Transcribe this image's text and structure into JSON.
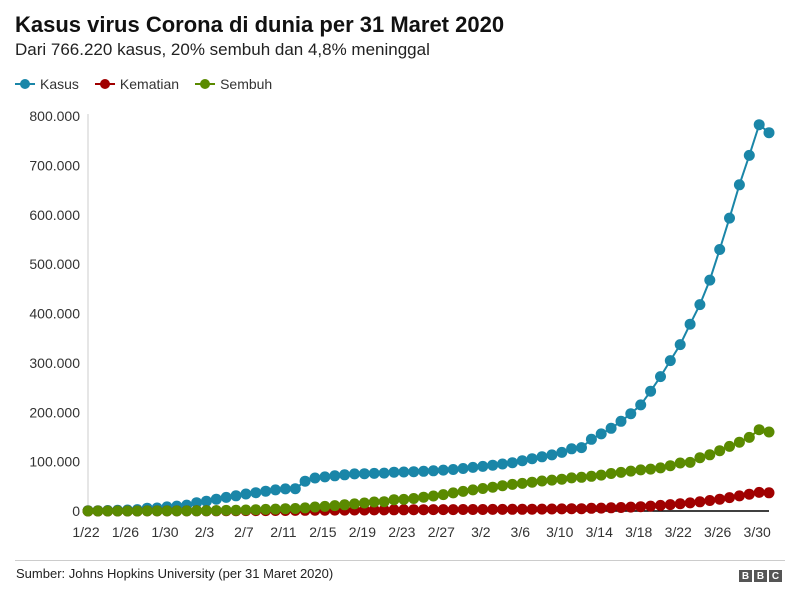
{
  "title": "Kasus virus Corona di dunia per 31 Maret 2020",
  "subtitle": "Dari 766.220 kasus, 20% sembuh dan 4,8% meninggal",
  "source": "Sumber: Johns Hopkins University (per 31 Maret 2020)",
  "logo": [
    "B",
    "B",
    "C"
  ],
  "colors": {
    "kasus": "#1a86a8",
    "kematian": "#a00000",
    "sembuh": "#5a8a00"
  },
  "chart_data": {
    "type": "line",
    "title": "Kasus virus Corona di dunia per 31 Maret 2020",
    "xlabel": "",
    "ylabel": "",
    "ylim": [
      0,
      800000
    ],
    "yticks": [
      0,
      100000,
      200000,
      300000,
      400000,
      500000,
      600000,
      700000,
      800000
    ],
    "ytick_labels": [
      "0",
      "100.000",
      "200.000",
      "300.000",
      "400.000",
      "500.000",
      "600.000",
      "700.000",
      "800.000"
    ],
    "xtick_labels": [
      "1/22",
      "1/26",
      "1/30",
      "2/3",
      "2/7",
      "2/11",
      "2/15",
      "2/19",
      "2/23",
      "2/27",
      "3/2",
      "3/6",
      "3/10",
      "3/14",
      "3/18",
      "3/22",
      "3/26",
      "3/30"
    ],
    "x_start": "1/22",
    "x_end": "3/31",
    "legend_position": "top-left",
    "series": [
      {
        "name": "Kasus",
        "color": "#1a86a8",
        "values": [
          555,
          654,
          941,
          1434,
          2118,
          2927,
          5578,
          6166,
          8234,
          9927,
          12038,
          16787,
          19881,
          23892,
          27635,
          30794,
          34391,
          37120,
          40150,
          42762,
          44802,
          45221,
          60368,
          66885,
          69030,
          71224,
          73258,
          75136,
          75639,
          76197,
          76819,
          78572,
          78958,
          79561,
          80406,
          81388,
          82746,
          84112,
          86011,
          88369,
          90306,
          92840,
          95120,
          97886,
          101801,
          105847,
          109821,
          113590,
          118620,
          125875,
          128352,
          145205,
          156101,
          167454,
          181574,
          197102,
          214821,
          242570,
          272208,
          304507,
          336953,
          378235,
          418045,
          467653,
          529591,
          593291,
          660706,
          720117,
          782365,
          766220
        ]
      },
      {
        "name": "Kematian",
        "color": "#a00000",
        "values": [
          17,
          18,
          26,
          42,
          56,
          82,
          131,
          133,
          171,
          213,
          259,
          362,
          426,
          492,
          564,
          634,
          719,
          806,
          906,
          1013,
          1113,
          1118,
          1371,
          1523,
          1666,
          1770,
          1868,
          2007,
          2122,
          2247,
          2251,
          2458,
          2469,
          2629,
          2708,
          2770,
          2814,
          2872,
          2941,
          2996,
          3085,
          3160,
          3254,
          3348,
          3460,
          3558,
          3803,
          3996,
          4262,
          4615,
          4720,
          5404,
          5819,
          6440,
          7126,
          7905,
          8733,
          9867,
          11299,
          12973,
          14651,
          16505,
          18625,
          21181,
          23970,
          27198,
          30652,
          33925,
          37582,
          36818
        ]
      },
      {
        "name": "Sembuh",
        "color": "#5a8a00",
        "values": [
          28,
          30,
          36,
          39,
          52,
          61,
          107,
          126,
          143,
          222,
          284,
          472,
          623,
          852,
          1124,
          1487,
          2011,
          2616,
          3244,
          3946,
          4683,
          5150,
          6295,
          8058,
          9395,
          10865,
          12583,
          14352,
          16121,
          18177,
          18890,
          22886,
          23394,
          25227,
          27905,
          30384,
          33277,
          36711,
          39782,
          42716,
          45602,
          48228,
          51170,
          53796,
          55865,
          58358,
          60694,
          62494,
          64404,
          67003,
          68324,
          70251,
          72624,
          76034,
          78088,
          80840,
          83207,
          84854,
          87256,
          91676,
          97243,
          98334,
          107990,
          113787,
          122150,
          130915,
          139415,
          149082,
          164566,
          160000
        ]
      }
    ]
  },
  "legend": [
    {
      "label": "Kasus",
      "color": "#1a86a8"
    },
    {
      "label": "Kematian",
      "color": "#a00000"
    },
    {
      "label": "Sembuh",
      "color": "#5a8a00"
    }
  ]
}
